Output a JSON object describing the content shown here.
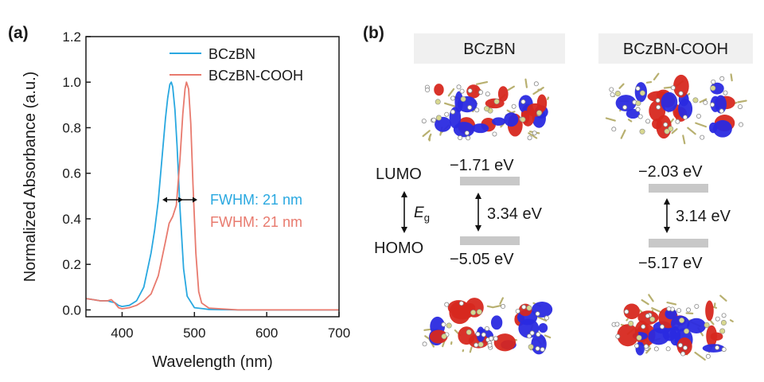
{
  "panel_a": {
    "label": "(a)",
    "legend": [
      "BCzBN",
      "BCzBN-COOH"
    ],
    "annotations": [
      "FWHM: 21 nm",
      "FWHM: 21 nm"
    ]
  },
  "panel_b": {
    "label": "(b)",
    "columns": [
      "BCzBN",
      "BCzBN-COOH"
    ],
    "lumo_label": "LUMO",
    "homo_label": "HOMO",
    "eg_label": "E",
    "eg_sub": "g",
    "molecules": [
      {
        "lumo": "−1.71 eV",
        "gap": "3.34 eV",
        "homo": "−5.05 eV"
      },
      {
        "lumo": "−2.03 eV",
        "gap": "3.14 eV",
        "homo": "−5.17 eV"
      }
    ]
  },
  "colors": {
    "bczbn": "#29a8e0",
    "cooh": "#e87a6e",
    "level": "#c8c8c8",
    "header_bg": "#f0f0f0",
    "orbital_red": "#d7281f",
    "orbital_blue": "#2a2ae0",
    "atom_yellow": "#d8d890"
  },
  "chart_data": [
    {
      "type": "line",
      "title": "",
      "xlabel": "Wavelength (nm)",
      "ylabel": "Normalized Absorbance (a.u.)",
      "xlim": [
        350,
        700
      ],
      "ylim": [
        -0.03,
        1.2
      ],
      "xticks": [
        400,
        500,
        600,
        700
      ],
      "yticks": [
        0.0,
        0.2,
        0.4,
        0.6,
        0.8,
        1.0,
        1.2
      ],
      "xtick_labels": [
        "400",
        "500",
        "600",
        "700"
      ],
      "ytick_labels": [
        "0.0",
        "0.2",
        "0.4",
        "0.6",
        "0.8",
        "1.0",
        "1.2"
      ],
      "legend_position": "top-right",
      "grid": false,
      "series": [
        {
          "name": "BCzBN",
          "x": [
            350,
            360,
            370,
            380,
            385,
            390,
            395,
            400,
            410,
            420,
            430,
            440,
            445,
            450,
            455,
            460,
            463,
            466,
            468,
            470,
            473,
            476,
            480,
            485,
            490,
            500,
            520,
            560,
            620,
            700
          ],
          "y": [
            0.05,
            0.045,
            0.04,
            0.04,
            0.035,
            0.032,
            0.02,
            0.015,
            0.02,
            0.04,
            0.1,
            0.25,
            0.35,
            0.48,
            0.66,
            0.84,
            0.93,
            0.99,
            1.0,
            0.98,
            0.88,
            0.72,
            0.45,
            0.18,
            0.06,
            0.01,
            0.002,
            0.0,
            0.0,
            0.0
          ]
        },
        {
          "name": "BCzBN-COOH",
          "x": [
            350,
            360,
            370,
            380,
            385,
            390,
            395,
            400,
            410,
            420,
            430,
            440,
            450,
            460,
            465,
            470,
            475,
            480,
            484,
            487,
            489,
            492,
            495,
            498,
            502,
            506,
            510,
            520,
            560,
            620,
            700
          ],
          "y": [
            0.05,
            0.045,
            0.04,
            0.04,
            0.045,
            0.03,
            0.01,
            0.005,
            0.01,
            0.02,
            0.04,
            0.07,
            0.15,
            0.3,
            0.38,
            0.41,
            0.46,
            0.66,
            0.86,
            0.97,
            1.0,
            0.97,
            0.82,
            0.55,
            0.25,
            0.08,
            0.03,
            0.008,
            0.0,
            0.0,
            0.0
          ]
        }
      ]
    }
  ]
}
